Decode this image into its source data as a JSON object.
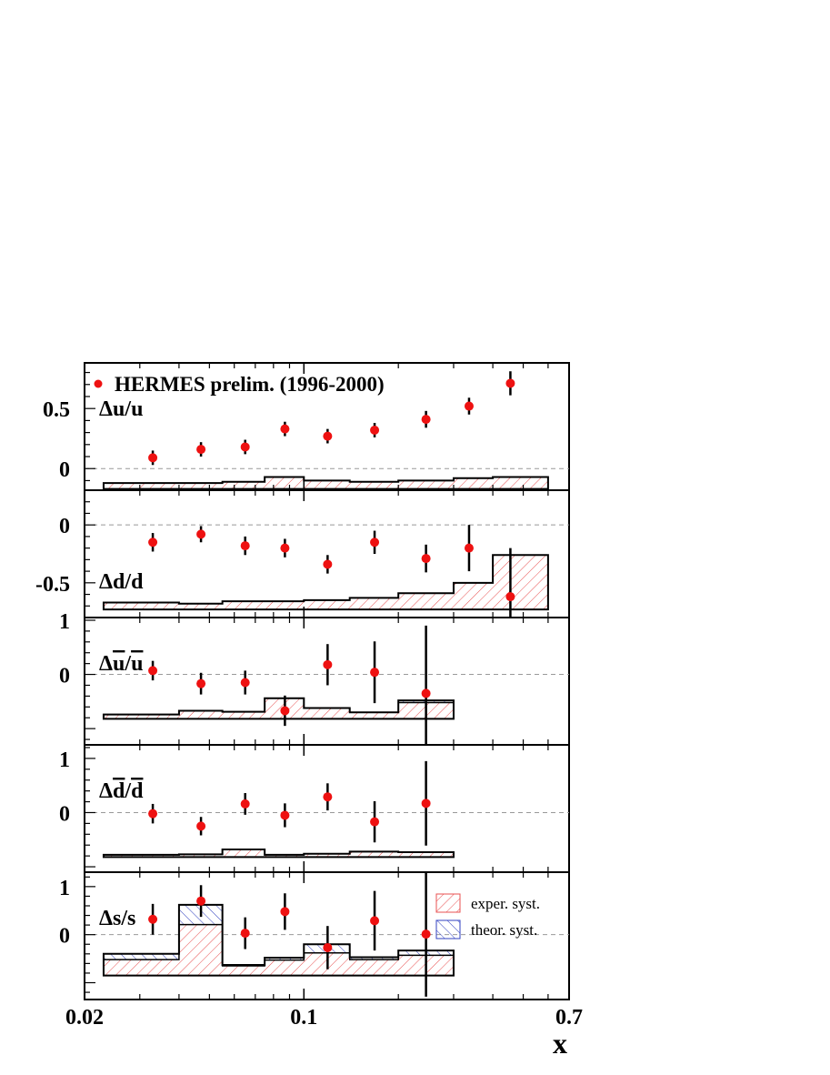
{
  "chart_data": {
    "type": "scatter",
    "x_scale": "log",
    "xlim": [
      0.02,
      0.7
    ],
    "xlabel": "x",
    "x_tick_labels": [
      {
        "value": 0.02,
        "label": "0.02"
      },
      {
        "value": 0.1,
        "label": "0.1"
      },
      {
        "value": 0.7,
        "label": "0.7"
      }
    ],
    "bin_edges": [
      0.023,
      0.04,
      0.055,
      0.075,
      0.1,
      0.14,
      0.2,
      0.3,
      0.4,
      0.6
    ],
    "x": [
      0.033,
      0.047,
      0.065,
      0.087,
      0.119,
      0.168,
      0.245,
      0.336,
      0.455
    ],
    "legend": {
      "points": "HERMES prelim. (1996-2000)",
      "exper_syst": "exper. syst.",
      "theor_syst": "theor. syst."
    },
    "colors": {
      "points": "#ee1111",
      "error_bars": "#000000",
      "exper_hatch": "#e85050",
      "theor_hatch": "#3040c0",
      "zero_line": "#999999"
    },
    "panels": [
      {
        "label_parts": [
          {
            "t": "Δu/u"
          }
        ],
        "ylim": [
          -0.18,
          0.88
        ],
        "yticks": [
          {
            "value": 0.5,
            "label": "0.5"
          },
          {
            "value": 0,
            "label": "0"
          }
        ],
        "y": [
          0.09,
          0.16,
          0.18,
          0.33,
          0.27,
          0.32,
          0.41,
          0.52,
          0.71
        ],
        "err": [
          0.06,
          0.06,
          0.06,
          0.06,
          0.06,
          0.06,
          0.07,
          0.07,
          0.1
        ],
        "syst_base": -0.17,
        "exper_syst_top": [
          -0.12,
          -0.12,
          -0.11,
          -0.07,
          -0.1,
          -0.11,
          -0.1,
          -0.08,
          -0.07
        ]
      },
      {
        "label_parts": [
          {
            "t": "Δd/d"
          }
        ],
        "ylim": [
          -0.8,
          0.3
        ],
        "yticks": [
          {
            "value": 0,
            "label": "0"
          },
          {
            "value": -0.5,
            "label": "-0.5"
          }
        ],
        "y": [
          -0.15,
          -0.08,
          -0.18,
          -0.2,
          -0.34,
          -0.15,
          -0.29,
          -0.2,
          -0.62
        ],
        "err": [
          0.08,
          0.07,
          0.08,
          0.08,
          0.08,
          0.1,
          0.12,
          0.2,
          0.42
        ],
        "syst_base": -0.73,
        "exper_syst_top": [
          -0.67,
          -0.68,
          -0.66,
          -0.66,
          -0.65,
          -0.63,
          -0.59,
          -0.5,
          -0.26
        ]
      },
      {
        "label_parts": [
          {
            "t": "Δ"
          },
          {
            "t": "u",
            "bar": true
          },
          {
            "t": "/"
          },
          {
            "t": "u",
            "bar": true
          }
        ],
        "ylim": [
          -1.3,
          1.05
        ],
        "yticks": [
          {
            "value": 1,
            "label": "1"
          },
          {
            "value": 0,
            "label": "0"
          }
        ],
        "y": [
          0.07,
          -0.17,
          -0.15,
          -0.67,
          0.18,
          0.04,
          -0.35
        ],
        "err": [
          0.18,
          0.2,
          0.22,
          0.28,
          0.38,
          0.57,
          1.25
        ],
        "syst_base": -0.82,
        "exper_syst_top": [
          -0.74,
          -0.67,
          -0.69,
          -0.44,
          -0.62,
          -0.7,
          -0.52
        ],
        "theor_syst_top": [
          -0.74,
          -0.67,
          -0.69,
          -0.44,
          -0.62,
          -0.7,
          -0.48
        ]
      },
      {
        "label_parts": [
          {
            "t": "Δ"
          },
          {
            "t": "d",
            "bar": true
          },
          {
            "t": "/"
          },
          {
            "t": "d",
            "bar": true
          }
        ],
        "ylim": [
          -1.1,
          1.25
        ],
        "yticks": [
          {
            "value": 1,
            "label": "1"
          },
          {
            "value": 0,
            "label": "0"
          }
        ],
        "y": [
          -0.02,
          -0.25,
          0.16,
          -0.05,
          0.29,
          -0.17,
          0.17
        ],
        "err": [
          0.18,
          0.17,
          0.2,
          0.22,
          0.25,
          0.38,
          0.78
        ],
        "syst_base": -0.82,
        "exper_syst_top": [
          -0.78,
          -0.77,
          -0.68,
          -0.78,
          -0.76,
          -0.72,
          -0.73
        ],
        "theor_syst_top": [
          -0.78,
          -0.77,
          -0.68,
          -0.78,
          -0.76,
          -0.72,
          -0.73
        ]
      },
      {
        "label_parts": [
          {
            "t": "Δs/s"
          }
        ],
        "ylim": [
          -1.35,
          1.3
        ],
        "yticks": [
          {
            "value": 1,
            "label": "1"
          },
          {
            "value": 0,
            "label": "0"
          }
        ],
        "y": [
          0.32,
          0.7,
          0.03,
          0.48,
          -0.27,
          0.29,
          0.01
        ],
        "err": [
          0.32,
          0.33,
          0.33,
          0.38,
          0.45,
          0.62,
          1.3
        ],
        "syst_base": -0.85,
        "exper_syst_top": [
          -0.52,
          0.21,
          -0.65,
          -0.53,
          -0.38,
          -0.52,
          -0.43
        ],
        "theor_syst_top": [
          -0.4,
          0.62,
          -0.63,
          -0.48,
          -0.2,
          -0.47,
          -0.33
        ]
      }
    ]
  }
}
